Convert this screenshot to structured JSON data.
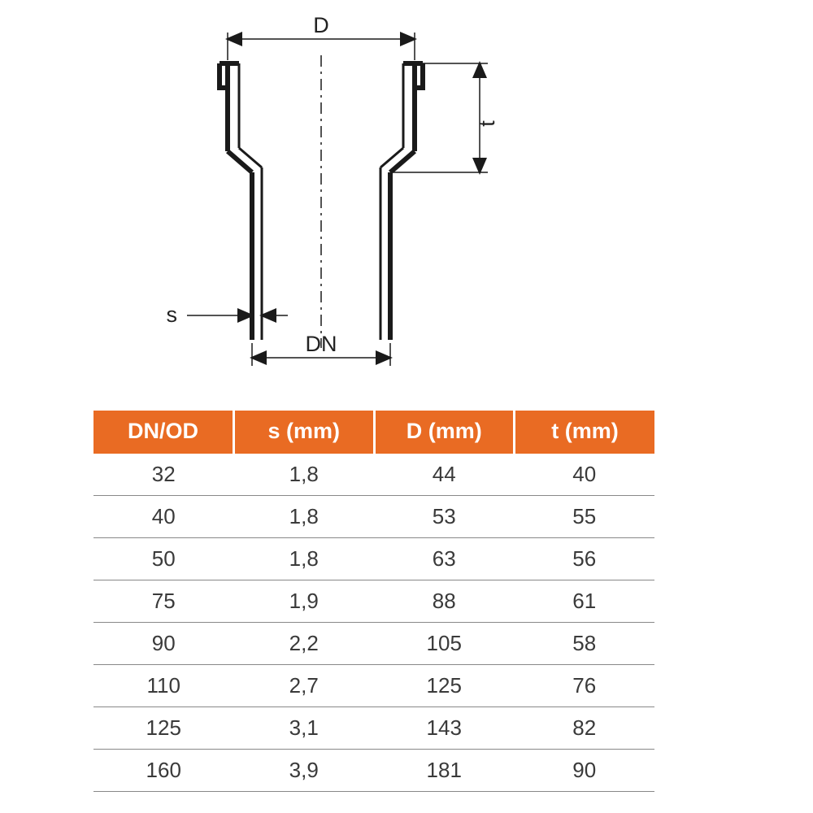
{
  "diagram": {
    "labels": {
      "D": "D",
      "t": "t",
      "s": "s",
      "DN": "DN"
    },
    "stroke_color": "#1a1a1a",
    "thin_stroke": 1.5,
    "thick_stroke": 6,
    "centerline_dash": "14 6 3 6"
  },
  "table": {
    "type": "table",
    "header_bg": "#e96b23",
    "header_fg": "#ffffff",
    "header_fontsize": 27,
    "cell_fontsize": 26,
    "cell_fg": "#3a3a3a",
    "row_border_color": "#888888",
    "header_gap_color": "#ffffff",
    "columns": [
      "DN/OD",
      "s (mm)",
      "D (mm)",
      "t (mm)"
    ],
    "column_widths_pct": [
      25,
      25,
      25,
      25
    ],
    "rows": [
      [
        "32",
        "1,8",
        "44",
        "40"
      ],
      [
        "40",
        "1,8",
        "53",
        "55"
      ],
      [
        "50",
        "1,8",
        "63",
        "56"
      ],
      [
        "75",
        "1,9",
        "88",
        "61"
      ],
      [
        "90",
        "2,2",
        "105",
        "58"
      ],
      [
        "110",
        "2,7",
        "125",
        "76"
      ],
      [
        "125",
        "3,1",
        "143",
        "82"
      ],
      [
        "160",
        "3,9",
        "181",
        "90"
      ]
    ]
  }
}
